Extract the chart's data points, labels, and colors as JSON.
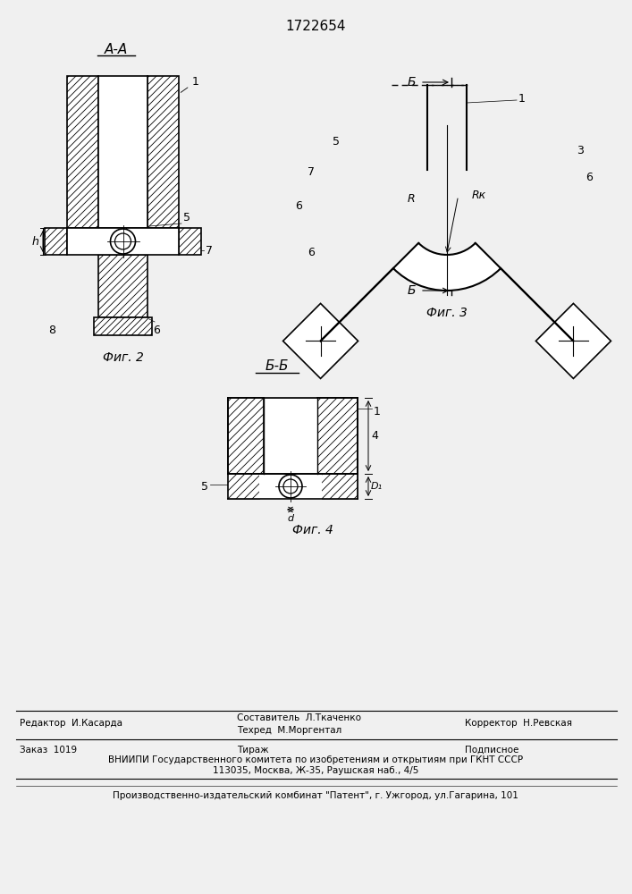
{
  "title": "1722654",
  "bg_color": "#f0f0f0",
  "fig2_label": "Фиг. 2",
  "fig3_label": "Фиг. 3",
  "fig4_label": "Фиг. 4",
  "label_AA": "А-А",
  "label_BB": "Б-Б",
  "label_B": "Б"
}
